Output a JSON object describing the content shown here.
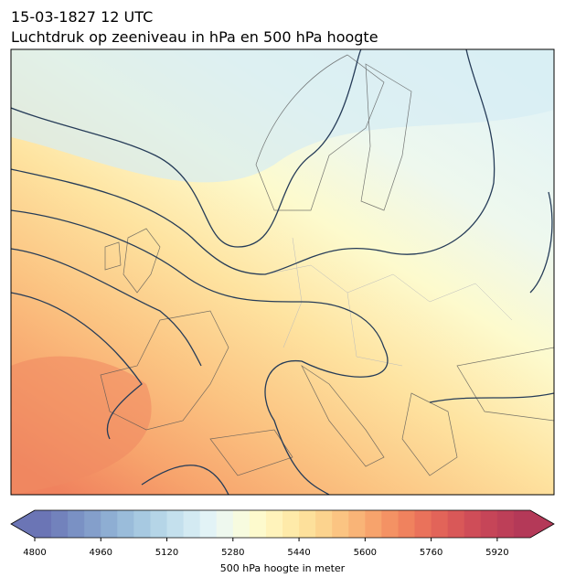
{
  "header": {
    "title": "15-03-1827 12 UTC",
    "subtitle": "Luchtdruk op zeeniveau in hPa en 500 hPa hoogte"
  },
  "colorbar": {
    "label": "500 hPa hoogte in meter",
    "lim": [
      4800,
      6000
    ],
    "ticks": [
      4800,
      4960,
      5120,
      5280,
      5440,
      5600,
      5760,
      5920
    ],
    "colors": [
      "#6b75b5",
      "#7282bc",
      "#7a91c4",
      "#849fcb",
      "#8eaed3",
      "#9abcda",
      "#a7c9e1",
      "#b5d5e7",
      "#c4e0ed",
      "#d3eaf2",
      "#e2f3f6",
      "#eef8ee",
      "#f7fbdf",
      "#fdfacd",
      "#fff3bb",
      "#feeaa9",
      "#fde09b",
      "#fcd38e",
      "#fbc482",
      "#f9b477",
      "#f7a36c",
      "#f49264",
      "#f0825e",
      "#ea725b",
      "#e26459",
      "#d95858",
      "#cf4d58",
      "#c64558",
      "#bd3f58",
      "#b43958"
    ]
  }
}
